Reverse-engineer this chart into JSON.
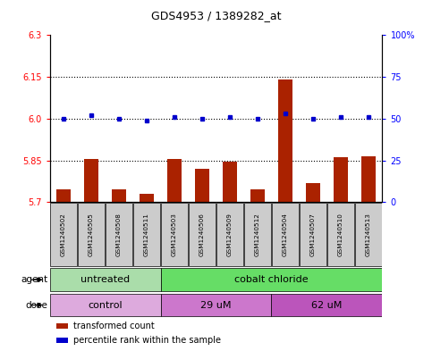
{
  "title": "GDS4953 / 1389282_at",
  "samples": [
    "GSM1240502",
    "GSM1240505",
    "GSM1240508",
    "GSM1240511",
    "GSM1240503",
    "GSM1240506",
    "GSM1240509",
    "GSM1240512",
    "GSM1240504",
    "GSM1240507",
    "GSM1240510",
    "GSM1240513"
  ],
  "bar_values": [
    5.745,
    5.855,
    5.745,
    5.73,
    5.855,
    5.82,
    5.845,
    5.745,
    6.14,
    5.77,
    5.86,
    5.865
  ],
  "dot_values": [
    50,
    52,
    50,
    49,
    51,
    50,
    51,
    50,
    53,
    50,
    51,
    51
  ],
  "ylim_left": [
    5.7,
    6.3
  ],
  "ylim_right": [
    0,
    100
  ],
  "yticks_left": [
    5.7,
    5.85,
    6.0,
    6.15,
    6.3
  ],
  "yticks_right": [
    0,
    25,
    50,
    75,
    100
  ],
  "ytick_labels_right": [
    "0",
    "25",
    "50",
    "75",
    "100%"
  ],
  "hlines": [
    5.85,
    6.0,
    6.15
  ],
  "bar_color": "#aa2200",
  "dot_color": "#0000cc",
  "bar_bottom": 5.7,
  "agent_groups": [
    {
      "label": "untreated",
      "start": 0,
      "end": 4,
      "color": "#aaddaa"
    },
    {
      "label": "cobalt chloride",
      "start": 4,
      "end": 12,
      "color": "#66dd66"
    }
  ],
  "dose_groups": [
    {
      "label": "control",
      "start": 0,
      "end": 4,
      "color": "#ddaadd"
    },
    {
      "label": "29 uM",
      "start": 4,
      "end": 8,
      "color": "#cc77cc"
    },
    {
      "label": "62 uM",
      "start": 8,
      "end": 12,
      "color": "#bb55bb"
    }
  ],
  "legend_items": [
    {
      "label": "transformed count",
      "color": "#aa2200"
    },
    {
      "label": "percentile rank within the sample",
      "color": "#0000cc"
    }
  ],
  "sample_box_color": "#cccccc",
  "fig_width": 4.83,
  "fig_height": 3.93,
  "dpi": 100
}
